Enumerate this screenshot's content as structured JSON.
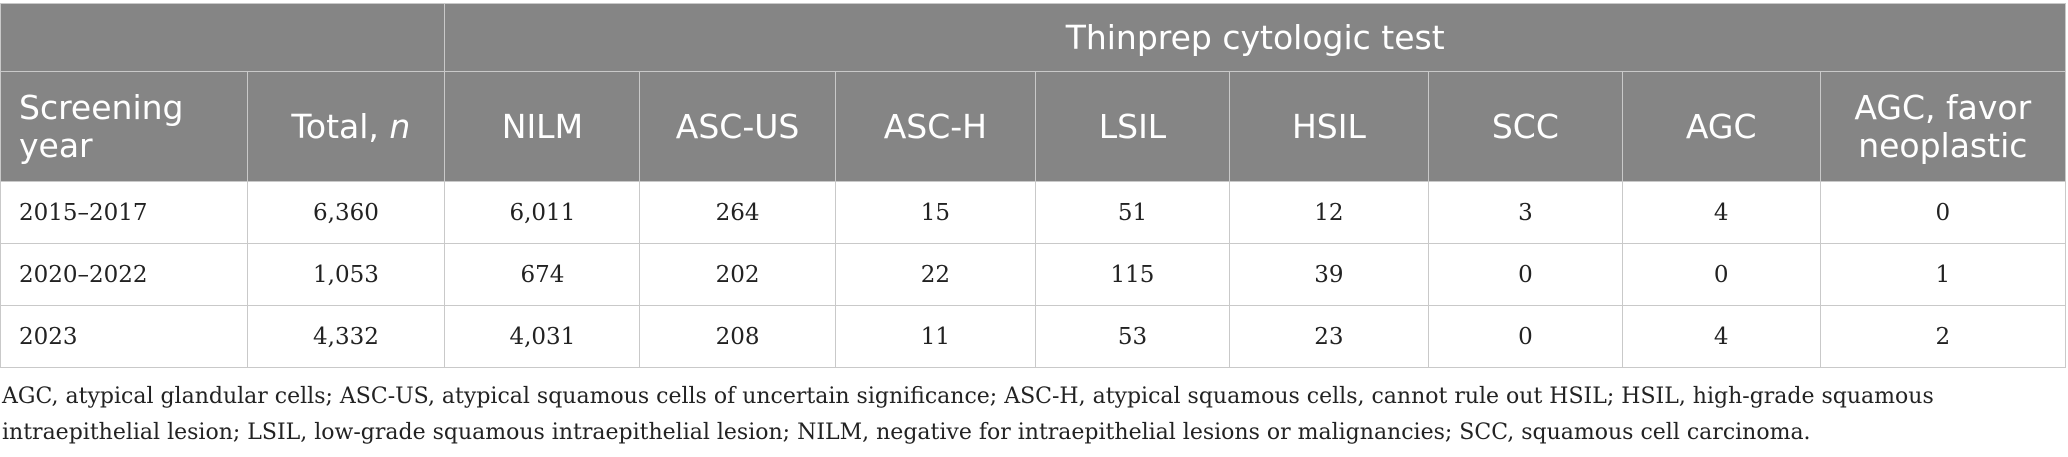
{
  "table": {
    "group_header": "Thinprep cytologic test",
    "columns": {
      "screening_year": "Screening year",
      "total_label": "Total, ",
      "total_var": "n",
      "nilm": "NILM",
      "ascus": "ASC-US",
      "asch": "ASC-H",
      "lsil": "LSIL",
      "hsil": "HSIL",
      "scc": "SCC",
      "agc": "AGC",
      "agc_fn": "AGC, favor neoplastic"
    },
    "rows": [
      {
        "year": "2015–2017",
        "total": "6,360",
        "nilm": "6,011",
        "ascus": "264",
        "asch": "15",
        "lsil": "51",
        "hsil": "12",
        "scc": "3",
        "agc": "4",
        "agc_fn": "0"
      },
      {
        "year": "2020–2022",
        "total": "1,053",
        "nilm": "674",
        "ascus": "202",
        "asch": "22",
        "lsil": "115",
        "hsil": "39",
        "scc": "0",
        "agc": "0",
        "agc_fn": "1"
      },
      {
        "year": "2023",
        "total": "4,332",
        "nilm": "4,031",
        "ascus": "208",
        "asch": "11",
        "lsil": "53",
        "hsil": "23",
        "scc": "0",
        "agc": "4",
        "agc_fn": "2"
      }
    ]
  },
  "footnote": "AGC, atypical glandular cells; ASC-US, atypical squamous cells of uncertain significance; ASC-H, atypical squamous cells, cannot rule out HSIL; HSIL, high-grade squamous intraepithelial lesion; LSIL, low-grade squamous intraepithelial lesion; NILM, negative for intraepithelial lesions or malignancies; SCC, squamous cell carcinoma."
}
